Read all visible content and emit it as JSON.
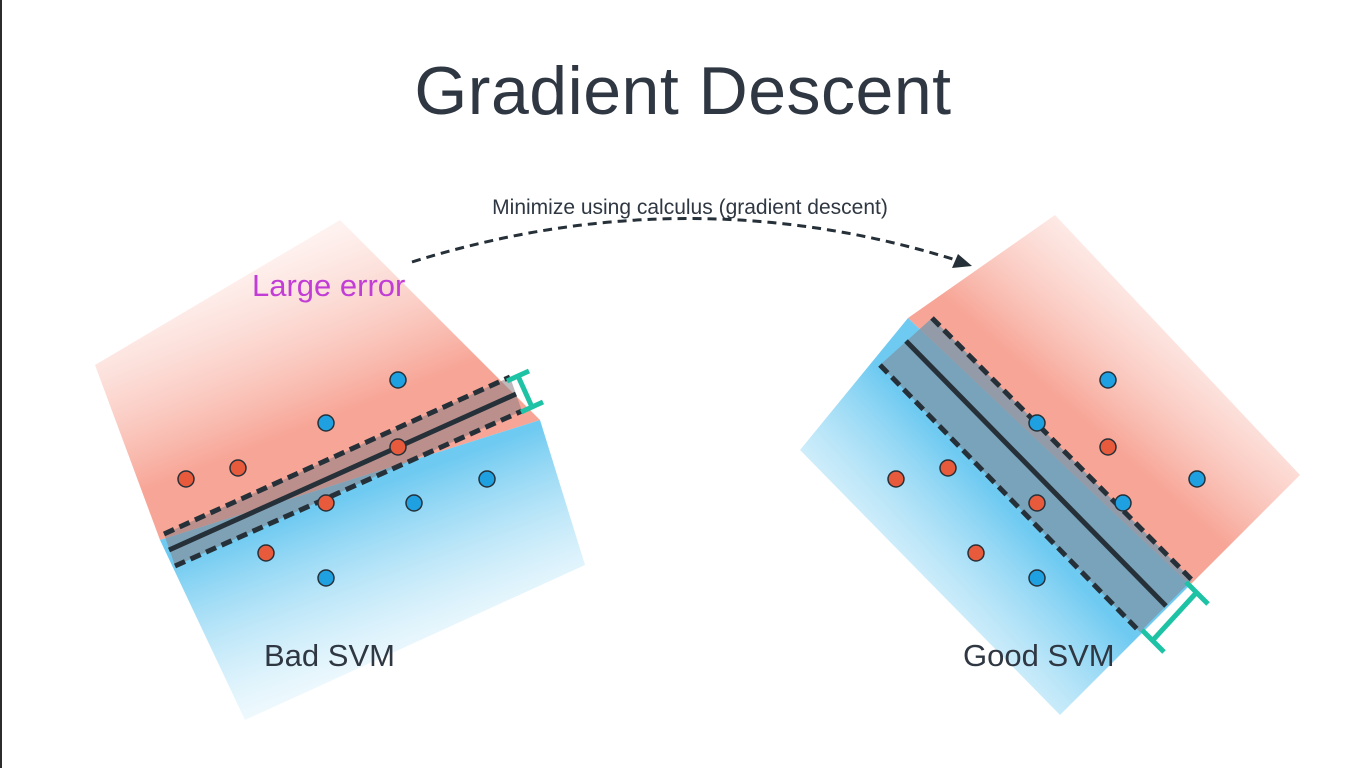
{
  "title": "Gradient Descent",
  "arrow_caption": "Minimize using calculus (gradient descent)",
  "left_panel": {
    "error_label": "Large error",
    "name_label": "Bad SVM"
  },
  "right_panel": {
    "name_label": "Good SVM"
  },
  "colors": {
    "title_text": "#2f3742",
    "error_text": "#c23dd6",
    "red_region": "#f9b3a6",
    "blue_region": "#8fd3f2",
    "red_point": "#e85a3c",
    "blue_point": "#1fa0e0",
    "margin_bracket": "#1ec2a5",
    "boundary_line": "#263038"
  },
  "icons": [
    "dashed-arrow-icon",
    "margin-bracket-icon"
  ]
}
